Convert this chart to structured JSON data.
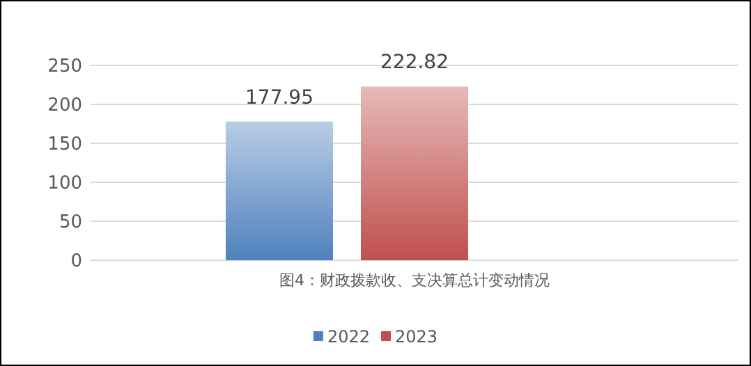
{
  "chart_data": {
    "type": "bar",
    "categories": [
      "图4：财政拨款收、支决算总计变动情况"
    ],
    "series": [
      {
        "name": "2022",
        "color": "#4f81bd",
        "values": [
          177.95
        ],
        "value_labels": [
          "177.95"
        ]
      },
      {
        "name": "2023",
        "color": "#c0504d",
        "values": [
          222.82
        ],
        "value_labels": [
          "222.82"
        ]
      },
      {
        "color": "#c3d69b",
        "values": [
          1
        ],
        "value_labels": [
          null
        ]
      }
    ],
    "ylim": [
      0,
      250
    ],
    "yticks": [
      0,
      50,
      100,
      150,
      200,
      250
    ],
    "grid": "y",
    "legend": "bottom"
  }
}
